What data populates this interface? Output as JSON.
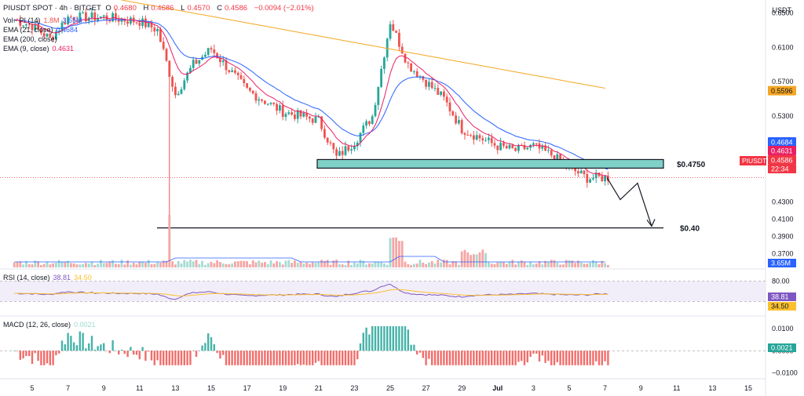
{
  "header": {
    "symbol": "PIUSDT SPOT · 4h · BITGET",
    "open_label": "O",
    "open": "0.4680",
    "high_label": "H",
    "high": "0.4686",
    "low_label": "L",
    "low": "0.4570",
    "close_label": "C",
    "close": "0.4586",
    "change": "−0.0094 (−2.01%)",
    "change_color": "#f23645"
  },
  "legend": {
    "vol_label": "Vol · PI (14)",
    "vol_value1": "1.8M",
    "vol_value2": "3.65M",
    "ema21_label": "EMA (21, close)",
    "ema21_value": "0.4684",
    "ema200_label": "EMA (200, close)",
    "ema9_label": "EMA (9, close)",
    "ema9_value": "0.4631"
  },
  "currency": "USDT",
  "colors": {
    "up": "#26a69a",
    "down": "#ef5350",
    "ema21": "#2962ff",
    "ema9": "#e91e63",
    "ema200": "#f5a623",
    "rsi": "#7e57c2",
    "rsi_ma": "#fbc02d",
    "zone": "#7fd1c7"
  },
  "chart_data": {
    "type": "candlestick",
    "x_tick_labels": [
      "5",
      "7",
      "9",
      "11",
      "13",
      "15",
      "17",
      "19",
      "21",
      "23",
      "25",
      "27",
      "29",
      "Jul",
      "3",
      "5",
      "7",
      "9",
      "11",
      "13",
      "15"
    ],
    "y_axis_labels": [
      "0.6500",
      "0.6100",
      "0.5700",
      "0.5300",
      "0.4900",
      "0.4300",
      "0.4100",
      "0.3900",
      "0.3700"
    ],
    "ylim": [
      0.355,
      0.665
    ],
    "price_badges": [
      {
        "value": "0.5596",
        "color": "#f5a623",
        "text_color": "#131722"
      },
      {
        "value": "0.4684",
        "color": "#2962ff",
        "text_color": "#ffffff"
      },
      {
        "value": "0.4631",
        "color": "#e91e63",
        "text_color": "#ffffff"
      },
      {
        "value": "0.4586",
        "color": "#f23645",
        "text_color": "#ffffff"
      }
    ],
    "countdown": "22:34",
    "symbol_badge": "PIUSDT",
    "annotations": {
      "resistance_label": "$0.4750",
      "target_label": "$0.40",
      "resistance_zone": [
        0.4695,
        0.4795
      ],
      "target_level": 0.4
    },
    "projection_path": [
      [
        0.4586
      ],
      [
        0.433
      ],
      [
        0.452
      ],
      [
        0.402
      ]
    ],
    "key_closes": [
      {
        "x": "4",
        "y": 0.642
      },
      {
        "x": "5",
        "y": 0.635
      },
      {
        "x": "6",
        "y": 0.62
      },
      {
        "x": "7",
        "y": 0.645
      },
      {
        "x": "9",
        "y": 0.645
      },
      {
        "x": "11",
        "y": 0.64
      },
      {
        "x": "12",
        "y": 0.63
      },
      {
        "x": "13",
        "y": 0.555
      },
      {
        "x": "14",
        "y": 0.59
      },
      {
        "x": "15",
        "y": 0.608
      },
      {
        "x": "17",
        "y": 0.56
      },
      {
        "x": "19",
        "y": 0.535
      },
      {
        "x": "21",
        "y": 0.525
      },
      {
        "x": "22",
        "y": 0.482
      },
      {
        "x": "23",
        "y": 0.5
      },
      {
        "x": "24",
        "y": 0.53
      },
      {
        "x": "25",
        "y": 0.64
      },
      {
        "x": "26",
        "y": 0.59
      },
      {
        "x": "27",
        "y": 0.57
      },
      {
        "x": "28",
        "y": 0.55
      },
      {
        "x": "29",
        "y": 0.515
      },
      {
        "x": "Jul",
        "y": 0.495
      },
      {
        "x": "2",
        "y": 0.49
      },
      {
        "x": "3",
        "y": 0.495
      },
      {
        "x": "4",
        "y": 0.485
      },
      {
        "x": "5",
        "y": 0.47
      },
      {
        "x": "6",
        "y": 0.458
      },
      {
        "x": "7",
        "y": 0.4586
      }
    ]
  },
  "volume": {
    "badge": "3.65M",
    "ma_color": "#2962ff"
  },
  "rsi": {
    "label": "RSI (14, close)",
    "value": "38.81",
    "ma_value": "34.50",
    "levels": [
      "80.00"
    ],
    "ylim": [
      0,
      100
    ],
    "upper": 70,
    "lower": 30,
    "badge_rsi": "38.81",
    "badge_ma": "34.50"
  },
  "macd": {
    "label": "MACD (12, 26, close)",
    "value": "0.0021",
    "axis_labels": [
      "0.0100",
      "0.0000",
      "−0.0100"
    ],
    "badge": "0.0021",
    "ylim": [
      -0.0115,
      0.0145
    ]
  }
}
